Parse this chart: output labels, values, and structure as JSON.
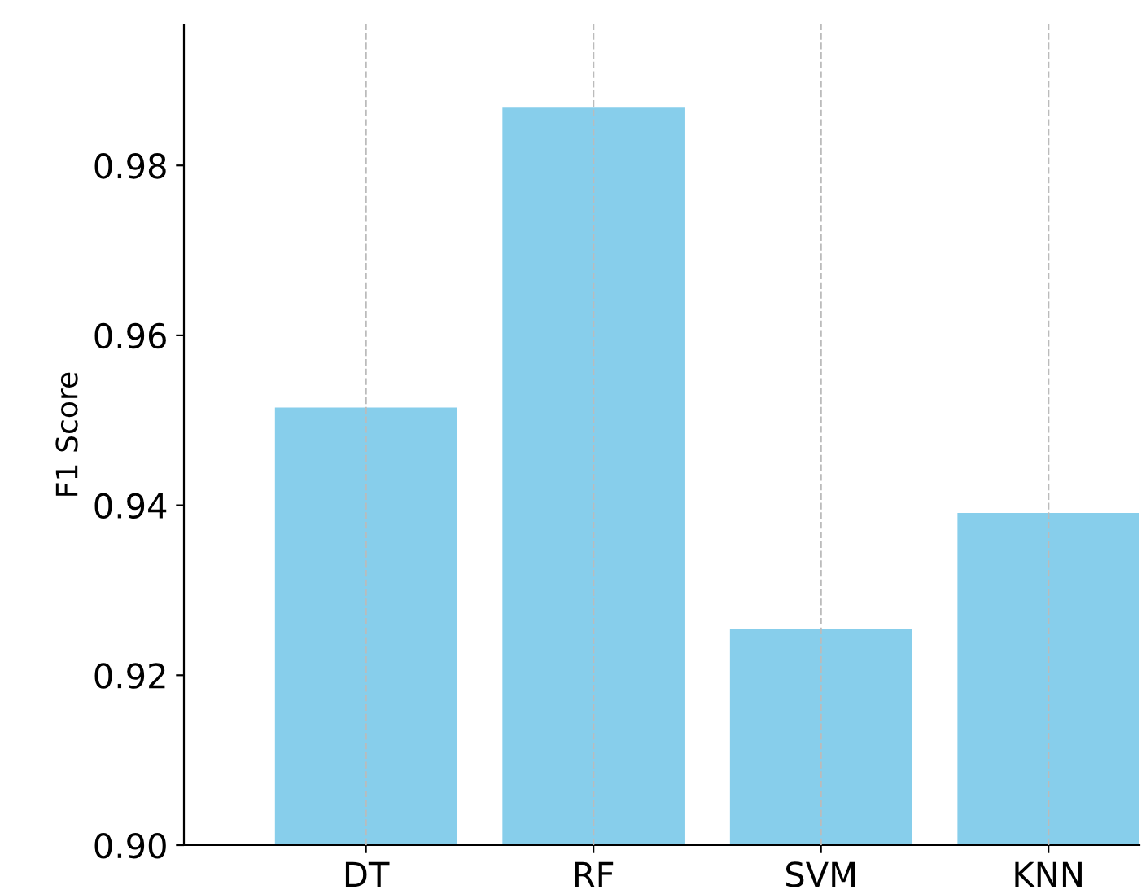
{
  "chart_data": {
    "type": "bar",
    "ylabel": "F1 Score",
    "categories": [
      "DT",
      "RF",
      "SVM",
      "KNN"
    ],
    "values": [
      0.9515,
      0.9868,
      0.9255,
      0.9391
    ],
    "color": "#87ceeb",
    "ylim": [
      0.9,
      0.9966
    ],
    "yticks": [
      {
        "value": 0.9,
        "label": "0.90"
      },
      0.92,
      0.94,
      0.96,
      0.98
    ],
    "grid": "x"
  }
}
